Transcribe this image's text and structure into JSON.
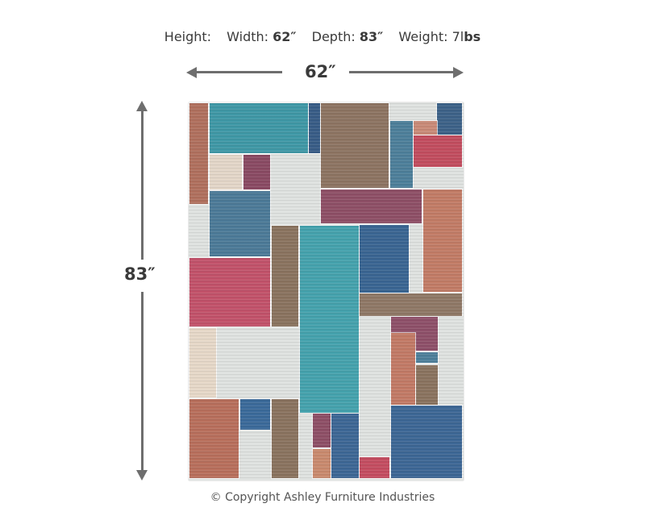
{
  "specs": {
    "height_label": "Height:",
    "width_label": "Width:",
    "width_value": "62″",
    "depth_label": "Depth:",
    "depth_value": "83″",
    "weight_label": "Weight: 7l",
    "weight_unit": "bs"
  },
  "dimensions": {
    "width": "62″",
    "height": "83″"
  },
  "product": {
    "type": "rug",
    "palette": [
      "#3f98a6",
      "#385c86",
      "#8d7462",
      "#c24d5f",
      "#8e4f66",
      "#c27c66",
      "#dfe2e0"
    ]
  },
  "copyright": "© Copyright Ashley Furniture Industries"
}
